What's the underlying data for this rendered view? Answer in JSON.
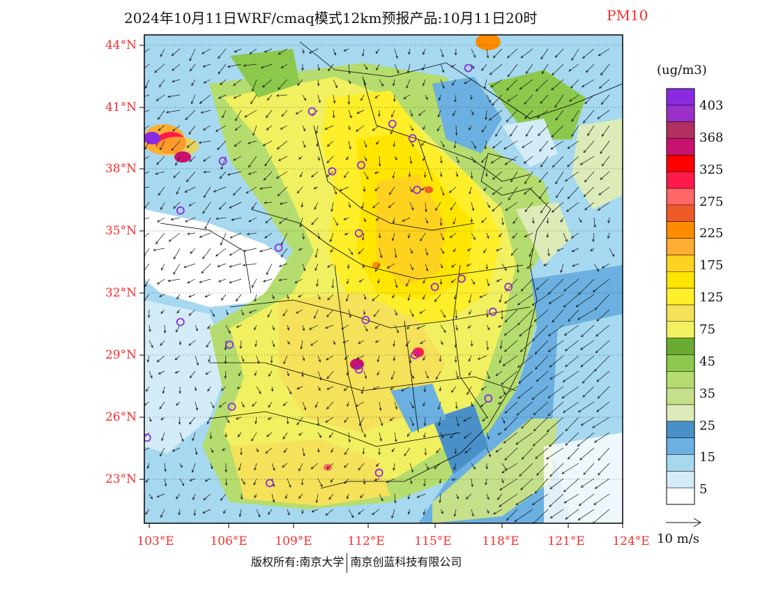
{
  "title": {
    "main": "2024年10月11日WRF/cmaq模式12km预报产品:10月11日20时",
    "variable": "PM10"
  },
  "latitude_labels": [
    "44°N",
    "41°N",
    "38°N",
    "35°N",
    "32°N",
    "29°N",
    "26°N",
    "23°N"
  ],
  "longitude_labels": [
    "103°E",
    "106°E",
    "109°E",
    "112°E",
    "115°E",
    "118°E",
    "121°E",
    "124°E"
  ],
  "legend": {
    "unit": "(ug/m3)",
    "labels": [
      "403",
      "368",
      "325",
      "275",
      "225",
      "175",
      "125",
      "75",
      "45",
      "35",
      "25",
      "15",
      "5"
    ],
    "colors": [
      "#8a2be2",
      "#9b30c8",
      "#b03060",
      "#c8126e",
      "#ff0000",
      "#ff1a4a",
      "#ff6666",
      "#f05a28",
      "#ff8c00",
      "#ffad33",
      "#ffd21f",
      "#ffe600",
      "#ffee2a",
      "#f5e15a",
      "#f0f060",
      "#6aab32",
      "#8cc84b",
      "#b5dc6e",
      "#c6df8a",
      "#dcebb8",
      "#4a90c8",
      "#6bb0e0",
      "#a6d8f0",
      "#d4ecf8",
      "#ffffff"
    ]
  },
  "wind_reference": {
    "label": "10 m/s"
  },
  "copyright": {
    "left": "版权所有:南京大学",
    "right": "南京创蓝科技有限公司"
  },
  "map_bounds": {
    "lon_range": [
      103,
      124
    ],
    "lat_range": [
      21,
      44
    ]
  },
  "monitoring_stations": [
    {
      "lon": 110.3,
      "lat": 40.8
    },
    {
      "lon": 117.3,
      "lat": 42.9
    },
    {
      "lon": 113.9,
      "lat": 40.2
    },
    {
      "lon": 114.8,
      "lat": 39.5
    },
    {
      "lon": 112.5,
      "lat": 38.2
    },
    {
      "lon": 111.2,
      "lat": 37.9
    },
    {
      "lon": 106.3,
      "lat": 38.4
    },
    {
      "lon": 104.4,
      "lat": 36.0
    },
    {
      "lon": 108.8,
      "lat": 34.2
    },
    {
      "lon": 112.4,
      "lat": 34.9
    },
    {
      "lon": 115.0,
      "lat": 37.0
    },
    {
      "lon": 115.8,
      "lat": 32.3
    },
    {
      "lon": 117.0,
      "lat": 32.7
    },
    {
      "lon": 119.1,
      "lat": 32.3
    },
    {
      "lon": 118.4,
      "lat": 31.1
    },
    {
      "lon": 104.4,
      "lat": 30.6
    },
    {
      "lon": 106.6,
      "lat": 29.5
    },
    {
      "lon": 112.7,
      "lat": 30.7
    },
    {
      "lon": 114.9,
      "lat": 29.0
    },
    {
      "lon": 112.4,
      "lat": 28.3
    },
    {
      "lon": 106.7,
      "lat": 26.5
    },
    {
      "lon": 102.9,
      "lat": 25.0
    },
    {
      "lon": 118.2,
      "lat": 26.9
    },
    {
      "lon": 108.4,
      "lat": 22.8
    },
    {
      "lon": 113.3,
      "lat": 23.3
    }
  ]
}
